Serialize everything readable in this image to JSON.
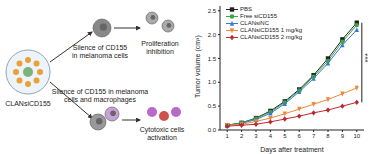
{
  "diagram": {
    "particle": "CLANsiCD155",
    "top_path": {
      "step": [
        "Silence of CD155",
        "in melanoma cells"
      ],
      "result": [
        "Proliferation",
        "inhibition"
      ]
    },
    "bottom_path": {
      "step": [
        "Silence of CD155 in melanoma",
        "cells and macrophages"
      ],
      "result": [
        "Cytotoxic cells",
        "activation"
      ]
    }
  },
  "chart_data": {
    "type": "line",
    "x_label": "Days after treatment",
    "y_label": "Tumor volume (cm³)",
    "x": [
      1,
      2,
      3,
      4,
      5,
      6,
      7,
      8,
      9,
      10
    ],
    "xlim": [
      0.5,
      10.5
    ],
    "xticks": [
      1,
      2,
      3,
      4,
      5,
      6,
      7,
      8,
      9,
      10
    ],
    "ylim": [
      0,
      2.6
    ],
    "yticks": [
      {
        "value": 0,
        "label": "0.0"
      },
      0.5,
      {
        "value": 1,
        "label": "1.0"
      },
      1.5,
      {
        "value": 2,
        "label": "2.0"
      },
      2.5
    ],
    "legend": "upper left",
    "series": [
      {
        "name": "PBS",
        "color": "#222222",
        "marker": "square",
        "values": [
          0.1,
          0.15,
          0.25,
          0.4,
          0.6,
          0.85,
          1.15,
          1.5,
          1.9,
          2.25
        ]
      },
      {
        "name": "Free siCD155",
        "color": "#3aa845",
        "marker": "circle",
        "values": [
          0.1,
          0.15,
          0.24,
          0.38,
          0.58,
          0.83,
          1.12,
          1.45,
          1.85,
          2.2
        ]
      },
      {
        "name": "CLANsiNC",
        "color": "#3b78d0",
        "marker": "triangle",
        "values": [
          0.1,
          0.14,
          0.22,
          0.35,
          0.55,
          0.8,
          1.08,
          1.4,
          1.78,
          2.1
        ]
      },
      {
        "name": "CLANsiCD155 1 mg/kg",
        "color": "#f0873a",
        "marker": "triangle-down",
        "values": [
          0.1,
          0.12,
          0.18,
          0.25,
          0.34,
          0.44,
          0.54,
          0.64,
          0.76,
          0.88
        ]
      },
      {
        "name": "CLANsiCD155 2 mg/kg",
        "color": "#c0282d",
        "marker": "diamond",
        "values": [
          0.08,
          0.1,
          0.12,
          0.17,
          0.23,
          0.29,
          0.36,
          0.42,
          0.5,
          0.58
        ]
      }
    ],
    "annotations": [
      {
        "text": "***",
        "x": 10.35,
        "y_from": 0.58,
        "y_to": 2.25
      }
    ]
  }
}
